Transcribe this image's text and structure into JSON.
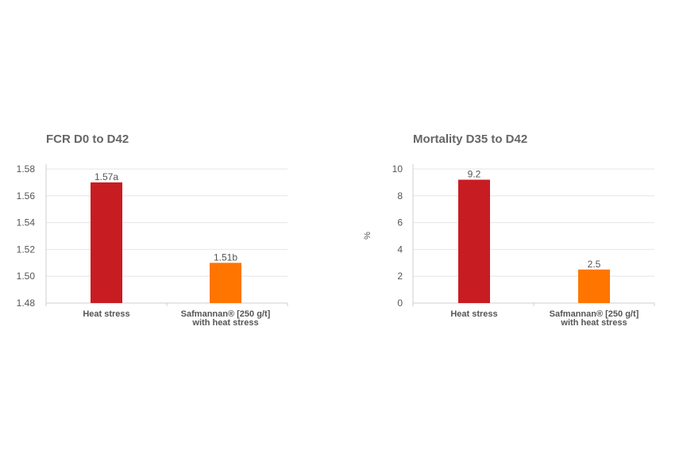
{
  "chart_data": [
    {
      "type": "bar",
      "title": "FCR D0 to D42",
      "ylabel": "",
      "xlabel": "",
      "ylim": [
        1.48,
        1.58
      ],
      "yticks": [
        "1.58",
        "1.56",
        "1.54",
        "1.52",
        "1.50",
        "1.48"
      ],
      "categories": [
        [
          "Heat stress"
        ],
        [
          "Safmannan® [250 g/t]",
          "with heat stress"
        ]
      ],
      "values": [
        1.57,
        1.51
      ],
      "data_labels": [
        "1.57a",
        "1.51b"
      ],
      "colors": [
        "#c81c23",
        "#ff7500"
      ],
      "grid": true
    },
    {
      "type": "bar",
      "title": "Mortality D35 to D42",
      "ylabel": "%",
      "xlabel": "",
      "ylim": [
        0,
        10
      ],
      "yticks": [
        "10",
        "8",
        "6",
        "4",
        "2",
        "0"
      ],
      "categories": [
        [
          "Heat stress"
        ],
        [
          "Safmannan® [250 g/t]",
          "with heat stress"
        ]
      ],
      "values": [
        9.2,
        2.5
      ],
      "data_labels": [
        "9.2",
        "2.5"
      ],
      "colors": [
        "#c81c23",
        "#ff7500"
      ],
      "grid": true
    }
  ]
}
